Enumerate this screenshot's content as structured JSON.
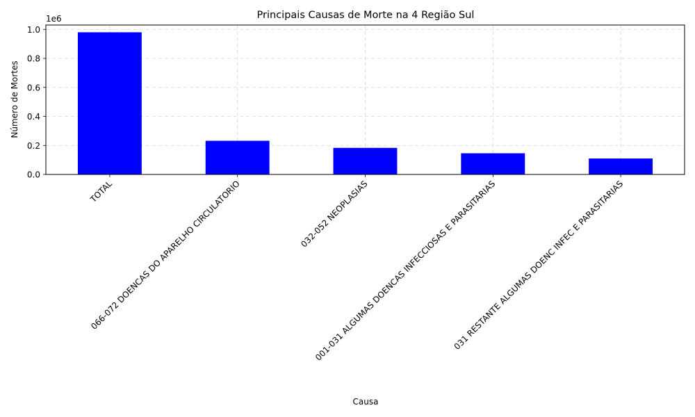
{
  "chart_data": {
    "type": "bar",
    "title": "Principais Causas de Morte na 4 Região Sul",
    "xlabel": "Causa",
    "ylabel": "Número de Mortes",
    "y_offset_label": "1e6",
    "categories": [
      "TOTAL",
      "066-072 DOENCAS DO APARELHO CIRCULATORIO",
      "032-052 NEOPLASIAS",
      "001-031 ALGUMAS DOENCAS INFECCIOSAS E PARASITARIAS",
      "031 RESTANTE ALGUMAS DOENC INFEC E PARASITARIAS"
    ],
    "values": [
      980000,
      232000,
      183000,
      146000,
      110000
    ],
    "ylim": [
      0,
      1030000
    ],
    "yticks": [
      0,
      200000,
      400000,
      600000,
      800000,
      1000000
    ],
    "ytick_labels": [
      "0.0",
      "0.2",
      "0.4",
      "0.6",
      "0.8",
      "1.0"
    ],
    "grid": true,
    "bar_color": "#0000ff"
  }
}
